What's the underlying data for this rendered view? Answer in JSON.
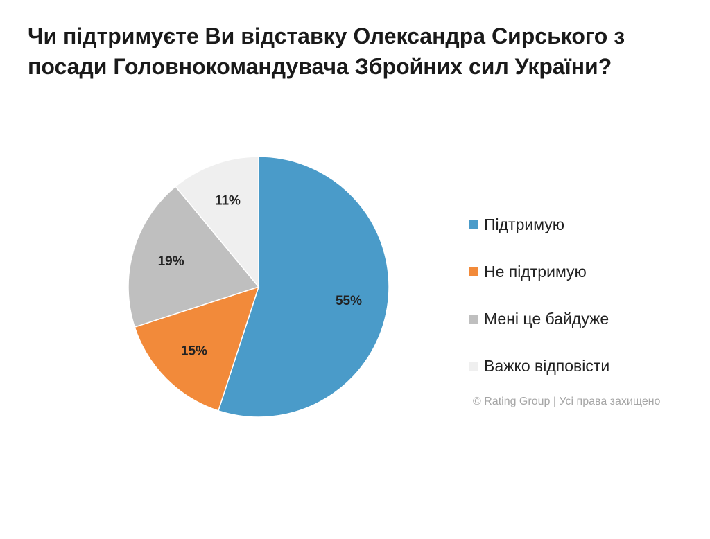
{
  "title_lines": [
    "Чи підтримуєте Ви відставку Олександра Сирського з",
    "посади Головнокомандувача Збройних сил України?"
  ],
  "chart_data": {
    "type": "pie",
    "title": "Чи підтримуєте Ви відставку Олександра Сирського з посади Головнокомандувача Збройних сил України?",
    "slices": [
      {
        "label": "Підтримую",
        "value": 55,
        "display": "55%",
        "color": "#4a9bc9"
      },
      {
        "label": "Не підтримую",
        "value": 15,
        "display": "15%",
        "color": "#f28a3a"
      },
      {
        "label": "Мені це байдуже",
        "value": 19,
        "display": "19%",
        "color": "#bfbfbf"
      },
      {
        "label": "Важко відповісти",
        "value": 11,
        "display": "11%",
        "color": "#efefef"
      }
    ],
    "legend_placement": "right"
  },
  "copyright": "© Rating Group | Усі права захищено"
}
